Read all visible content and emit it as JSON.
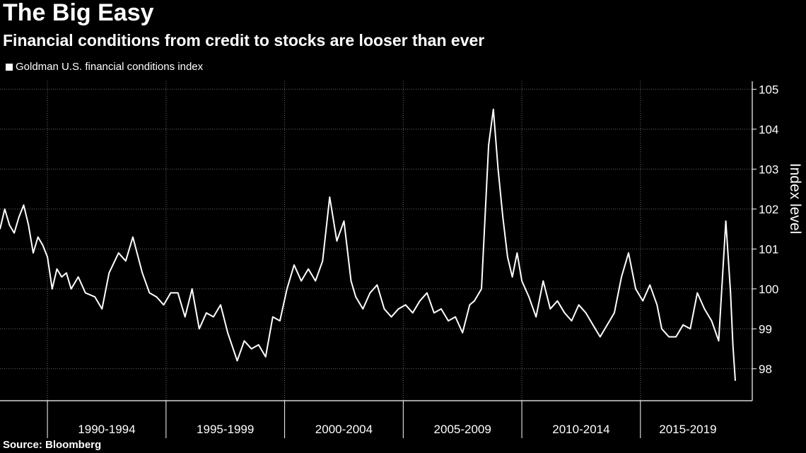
{
  "title": "The Big Easy",
  "subtitle": "Financial conditions from credit to stocks are looser than ever",
  "source": "Source: Bloomberg",
  "chart_data": {
    "type": "line",
    "legend": "top-left",
    "grid": true,
    "ylabel": "Index level",
    "ylim": [
      97.2,
      105.2
    ],
    "yticks": [
      98,
      99,
      100,
      101,
      102,
      103,
      104,
      105
    ],
    "x_range": [
      1988.0,
      2019.0
    ],
    "x_boundaries": [
      1990.0,
      1995.0,
      2000.0,
      2005.0,
      2010.0,
      2015.0
    ],
    "x_categories": [
      "1990-1994",
      "1995-1999",
      "2000-2004",
      "2005-2009",
      "2010-2014",
      "2015-2019"
    ],
    "series": [
      {
        "name": "Goldman U.S. financial conditions index",
        "color": "#ffffff",
        "x": [
          1988.0,
          1988.2,
          1988.4,
          1988.6,
          1988.8,
          1989.0,
          1989.2,
          1989.4,
          1989.6,
          1989.8,
          1990.0,
          1990.2,
          1990.4,
          1990.6,
          1990.8,
          1991.0,
          1991.3,
          1991.6,
          1992.0,
          1992.3,
          1992.6,
          1993.0,
          1993.3,
          1993.6,
          1994.0,
          1994.3,
          1994.6,
          1994.9,
          1995.2,
          1995.5,
          1995.8,
          1996.1,
          1996.4,
          1996.7,
          1997.0,
          1997.3,
          1997.6,
          1998.0,
          1998.3,
          1998.6,
          1998.9,
          1999.2,
          1999.5,
          1999.8,
          2000.1,
          2000.4,
          2000.7,
          2001.0,
          2001.3,
          2001.6,
          2001.9,
          2002.2,
          2002.5,
          2002.8,
          2003.0,
          2003.3,
          2003.6,
          2003.9,
          2004.2,
          2004.5,
          2004.8,
          2005.1,
          2005.4,
          2005.7,
          2006.0,
          2006.3,
          2006.6,
          2006.9,
          2007.2,
          2007.5,
          2007.8,
          2008.0,
          2008.3,
          2008.6,
          2008.8,
          2009.0,
          2009.2,
          2009.4,
          2009.6,
          2009.8,
          2010.0,
          2010.3,
          2010.6,
          2010.9,
          2011.2,
          2011.5,
          2011.8,
          2012.1,
          2012.4,
          2012.7,
          2013.0,
          2013.3,
          2013.6,
          2013.9,
          2014.2,
          2014.5,
          2014.8,
          2015.1,
          2015.4,
          2015.7,
          2015.9,
          2016.2,
          2016.5,
          2016.8,
          2017.1,
          2017.4,
          2017.7,
          2018.0,
          2018.3,
          2018.6,
          2018.8,
          2018.9,
          2019.0
        ],
        "values": [
          101.5,
          102.0,
          101.6,
          101.4,
          101.8,
          102.1,
          101.6,
          100.9,
          101.3,
          101.1,
          100.8,
          100.0,
          100.5,
          100.3,
          100.4,
          100.0,
          100.3,
          99.9,
          99.8,
          99.5,
          100.4,
          100.9,
          100.7,
          101.3,
          100.4,
          99.9,
          99.8,
          99.6,
          99.9,
          99.9,
          99.3,
          100.0,
          99.0,
          99.4,
          99.3,
          99.6,
          98.9,
          98.2,
          98.7,
          98.5,
          98.6,
          98.3,
          99.3,
          99.2,
          100.0,
          100.6,
          100.2,
          100.5,
          100.2,
          100.7,
          102.3,
          101.2,
          101.7,
          100.2,
          99.8,
          99.5,
          99.9,
          100.1,
          99.5,
          99.3,
          99.5,
          99.6,
          99.4,
          99.7,
          99.9,
          99.4,
          99.5,
          99.2,
          99.3,
          98.9,
          99.6,
          99.7,
          100.0,
          103.6,
          104.5,
          103.0,
          101.8,
          100.8,
          100.3,
          100.9,
          100.2,
          99.8,
          99.3,
          100.2,
          99.5,
          99.7,
          99.4,
          99.2,
          99.6,
          99.4,
          99.1,
          98.8,
          99.1,
          99.4,
          100.3,
          100.9,
          100.0,
          99.7,
          100.1,
          99.6,
          99.0,
          98.8,
          98.8,
          99.1,
          99.0,
          99.9,
          99.5,
          99.2,
          98.7,
          101.7,
          99.9,
          98.6,
          97.7
        ]
      }
    ]
  }
}
